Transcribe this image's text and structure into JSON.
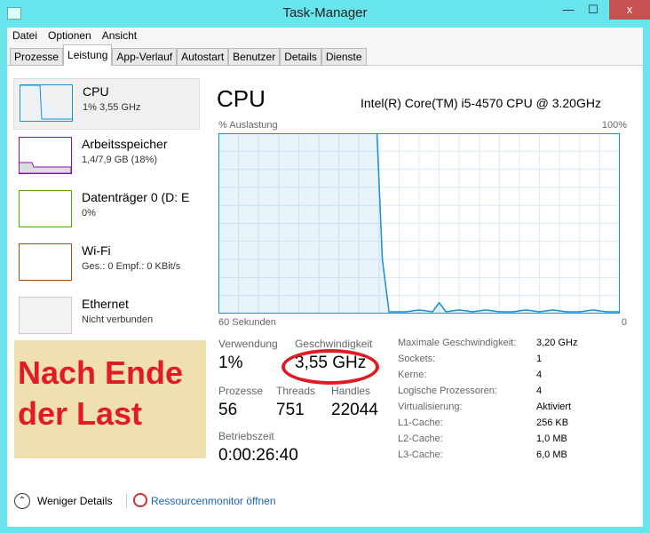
{
  "window": {
    "title": "Task-Manager",
    "close": "x"
  },
  "menu": [
    "Datei",
    "Optionen",
    "Ansicht"
  ],
  "tabs": [
    "Prozesse",
    "Leistung",
    "App-Verlauf",
    "Autostart",
    "Benutzer",
    "Details",
    "Dienste"
  ],
  "sidebar": [
    {
      "name": "CPU",
      "sub": "1% 3,55 GHz",
      "color": "#1a8fd1"
    },
    {
      "name": "Arbeitsspeicher",
      "sub": "1,4/7,9 GB (18%)",
      "color": "#8b12ae"
    },
    {
      "name": "Datenträger 0 (D: E",
      "sub": "0%",
      "color": "#4da60c"
    },
    {
      "name": "Wi-Fi",
      "sub": "Ges.: 0 Empf.: 0 KBit/s",
      "color": "#a74f01"
    },
    {
      "name": "Ethernet",
      "sub": "Nicht verbunden",
      "color": "#bbbbbb"
    }
  ],
  "annotation": "Nach Ende der Last",
  "main": {
    "title": "CPU",
    "model": "Intel(R) Core(TM) i5-4570 CPU @ 3.20GHz",
    "y_label": "% Auslastung",
    "y_max": "100%",
    "x_left": "60 Sekunden",
    "x_right": "0"
  },
  "chart_data": {
    "type": "area",
    "xlim": [
      60,
      0
    ],
    "ylim": [
      0,
      100
    ],
    "grid": true,
    "color": "#1a8fd1",
    "x": [
      60,
      56,
      52,
      48,
      44,
      40,
      36.3,
      35.5,
      34.5,
      32,
      30,
      28,
      27,
      26,
      24,
      22,
      20,
      18,
      16,
      14,
      12,
      10,
      8,
      6,
      4,
      2,
      0
    ],
    "y": [
      100,
      100,
      100,
      100,
      100,
      100,
      100,
      30,
      1,
      1,
      2,
      1,
      6,
      1,
      2,
      1,
      2,
      1,
      1,
      2,
      1,
      2,
      1,
      1,
      2,
      1,
      1
    ]
  },
  "stats": {
    "usage_label": "Verwendung",
    "usage": "1%",
    "speed_label": "Geschwindigkeit",
    "speed": "3,55 GHz",
    "proc_label": "Prozesse",
    "proc": "56",
    "threads_label": "Threads",
    "threads": "751",
    "handles_label": "Handles",
    "handles": "22044",
    "uptime_label": "Betriebszeit",
    "uptime": "0:00:26:40"
  },
  "specs": [
    [
      "Maximale Geschwindigkeit:",
      "3,20 GHz"
    ],
    [
      "Sockets:",
      "1"
    ],
    [
      "Kerne:",
      "4"
    ],
    [
      "Logische Prozessoren:",
      "4"
    ],
    [
      "Virtualisierung:",
      "Aktiviert"
    ],
    [
      "L1-Cache:",
      "256 KB"
    ],
    [
      "L2-Cache:",
      "1,0 MB"
    ],
    [
      "L3-Cache:",
      "6,0 MB"
    ]
  ],
  "footer": {
    "less": "Weniger Details",
    "resmon": "Ressourcenmonitor öffnen"
  }
}
